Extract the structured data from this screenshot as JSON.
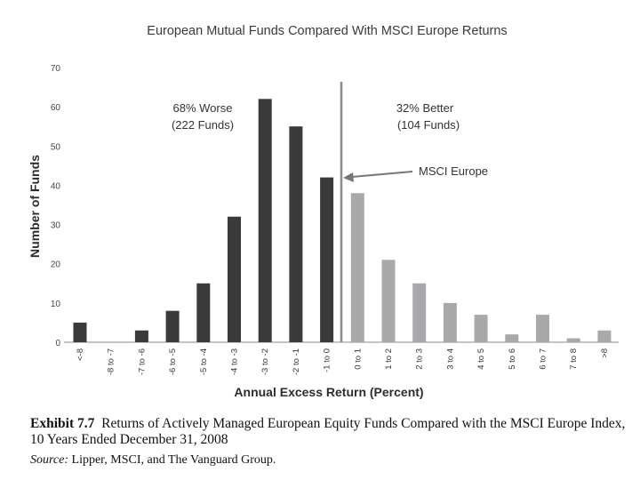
{
  "chart_data": {
    "type": "bar",
    "title": "European Mutual Funds Compared With MSCI Europe Returns",
    "xlabel": "Annual Excess Return (Percent)",
    "ylabel": "Number of Funds",
    "ylim": [
      0,
      70
    ],
    "yticks": [
      0,
      10,
      20,
      30,
      40,
      50,
      60,
      70
    ],
    "categories": [
      "<-8",
      "-8 to -7",
      "-7 to -6",
      "-6 to -5",
      "-5 to -4",
      "-4 to -3",
      "-3 to -2",
      "-2 to -1",
      "-1 to 0",
      "0 to 1",
      "1 to 2",
      "2 to 3",
      "3 to 4",
      "4 to 5",
      "5 to 6",
      "6 to 7",
      "7 to 8",
      ">8"
    ],
    "values": [
      5,
      0,
      3,
      8,
      15,
      32,
      62,
      55,
      42,
      38,
      21,
      15,
      10,
      7,
      2,
      7,
      1,
      3
    ],
    "series_colors": {
      "worse": "#3a3a3a",
      "better": "#a9a9ab"
    },
    "annotations": {
      "worse_pct": "68% Worse",
      "worse_count": "(222 Funds)",
      "better_pct": "32% Better",
      "better_count": "(104 Funds)",
      "benchmark": "MSCI Europe"
    }
  },
  "caption": {
    "exhibit": "Exhibit 7.7",
    "text": "Returns of Actively Managed European Equity Funds Compared with the MSCI Europe Index, 10 Years Ended December 31, 2008",
    "source_label": "Source:",
    "source_text": "Lipper, MSCI, and The Vanguard Group."
  }
}
